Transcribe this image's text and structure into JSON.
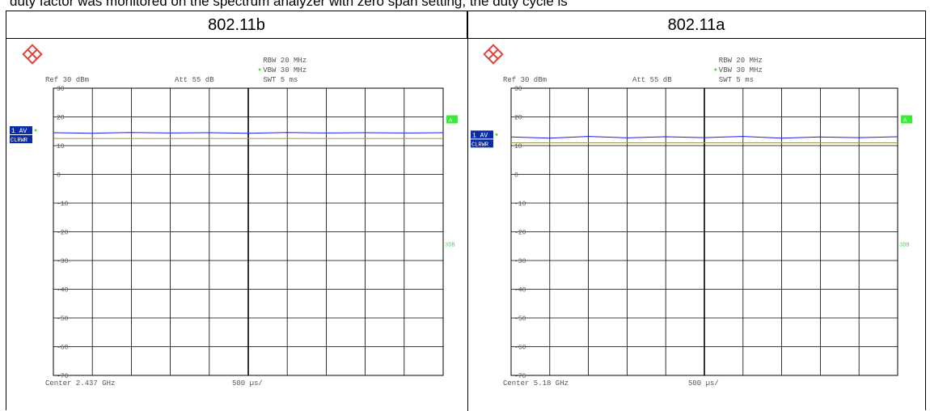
{
  "caption": "duty factor was monitored on the spectrum analyzer with zero span setting,  the duty cycle is",
  "table": {
    "headers": [
      "802.11b",
      "802.11a"
    ]
  },
  "colors": {
    "trace": "#1a1aff",
    "grid": "#000000",
    "status_green": "#33ee33",
    "marker_blue": "#0a2ca8",
    "ref_line": "#9a9a4a"
  },
  "panels": [
    {
      "rbw": "RBW  20 MHz",
      "vbw": "VBW  30 MHz",
      "ref": "Ref   30 dBm",
      "att": "Att   55 dB",
      "swt": "SWT  5 ms",
      "trace_label_1": "1 AV",
      "trace_label_2": "CLRWR",
      "right_a": "A",
      "right_3db": "3DB",
      "footer_center": "Center 2.437 GHz",
      "footer_div": "500 µs/"
    },
    {
      "rbw": "RBW  20 MHz",
      "vbw": "VBW  30 MHz",
      "ref": "Ref   30 dBm",
      "att": "Att   55 dB",
      "swt": "SWT  5 ms",
      "trace_label_1": "1 AV",
      "trace_label_2": "CLRWR",
      "right_a": "A",
      "right_3db": "3DB",
      "footer_center": "Center 5.18 GHz",
      "footer_div": "500 µs/"
    }
  ],
  "chart_data": [
    {
      "type": "line",
      "title": "802.11b",
      "xlabel": "",
      "ylabel": "",
      "ylim": [
        -70,
        30
      ],
      "y_ticks": [
        "30",
        "20",
        "10",
        "0",
        "-10",
        "-20",
        "-30",
        "-40",
        "-50",
        "-60",
        "-70"
      ],
      "x_divisions": 10,
      "series": [
        {
          "x": [
            0,
            1,
            2,
            3,
            4,
            5,
            6,
            7,
            8,
            9,
            10
          ],
          "values": [
            14.5,
            14.3,
            14.6,
            14.4,
            14.5,
            14.3,
            14.6,
            14.4,
            14.5,
            14.4,
            14.5
          ]
        }
      ],
      "reference_line": 12.5,
      "grid": true
    },
    {
      "type": "line",
      "title": "802.11a",
      "xlabel": "",
      "ylabel": "",
      "ylim": [
        -70,
        30
      ],
      "y_ticks": [
        "30",
        "20",
        "10",
        "0",
        "-10",
        "-20",
        "-30",
        "-40",
        "-50",
        "-60",
        "-70"
      ],
      "x_divisions": 10,
      "series": [
        {
          "x": [
            0,
            1,
            2,
            3,
            4,
            5,
            6,
            7,
            8,
            9,
            10
          ],
          "values": [
            13.0,
            12.6,
            13.2,
            12.7,
            13.1,
            12.8,
            13.2,
            12.6,
            13.0,
            12.8,
            13.1
          ]
        }
      ],
      "reference_line": 11.0,
      "grid": true
    }
  ]
}
